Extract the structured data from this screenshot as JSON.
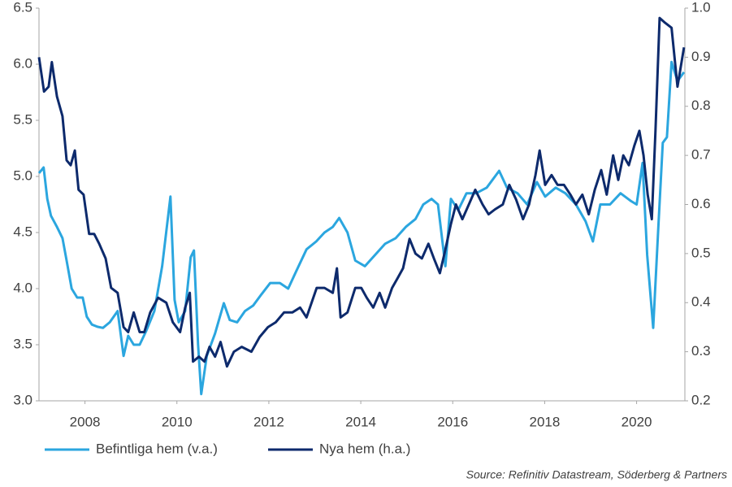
{
  "chart_data": {
    "type": "line",
    "source": "Source: Refinitiv Datastream, Söderberg & Partners",
    "xlim": [
      2007,
      2021.05
    ],
    "xticks": [
      2008,
      2010,
      2012,
      2014,
      2016,
      2018,
      2020
    ],
    "ylim": [
      3,
      6.5
    ],
    "yticks": [
      {
        "value": 3,
        "label": "3.0"
      },
      3.5,
      {
        "value": 4,
        "label": "4.0"
      },
      4.5,
      {
        "value": 5,
        "label": "5.0"
      },
      5.5,
      {
        "value": 6,
        "label": "6.0"
      },
      6.5
    ],
    "y2lim": [
      0.2,
      1
    ],
    "y2ticks": [
      0.2,
      0.3,
      0.4,
      0.5,
      0.6,
      0.7,
      0.8,
      0.9,
      {
        "value": 1,
        "label": "1.0"
      }
    ],
    "legend": "bottom",
    "series": [
      {
        "name": "Befintliga hem (v.a.)",
        "color": "#2ba6df",
        "axis": "y",
        "x": [
          2007.0,
          2007.1,
          2007.18,
          2007.26,
          2007.39,
          2007.51,
          2007.6,
          2007.71,
          2007.83,
          2007.95,
          2008.04,
          2008.15,
          2008.27,
          2008.39,
          2008.54,
          2008.71,
          2008.84,
          2008.94,
          2009.06,
          2009.19,
          2009.33,
          2009.51,
          2009.68,
          2009.86,
          2009.95,
          2010.04,
          2010.18,
          2010.3,
          2010.37,
          2010.46,
          2010.53,
          2010.65,
          2010.83,
          2011.02,
          2011.15,
          2011.31,
          2011.48,
          2011.66,
          2011.84,
          2012.03,
          2012.24,
          2012.42,
          2012.59,
          2012.82,
          2013.03,
          2013.21,
          2013.39,
          2013.53,
          2013.71,
          2013.88,
          2014.09,
          2014.31,
          2014.53,
          2014.76,
          2014.98,
          2015.19,
          2015.36,
          2015.54,
          2015.68,
          2015.84,
          2015.96,
          2016.12,
          2016.3,
          2016.51,
          2016.74,
          2017.01,
          2017.18,
          2017.41,
          2017.62,
          2017.83,
          2018.01,
          2018.24,
          2018.45,
          2018.68,
          2018.89,
          2019.05,
          2019.21,
          2019.42,
          2019.65,
          2019.88,
          2020.0,
          2020.13,
          2020.23,
          2020.36,
          2020.48,
          2020.57,
          2020.66,
          2020.76,
          2020.89,
          2021.03
        ],
        "values": [
          5.03,
          5.08,
          4.8,
          4.65,
          4.55,
          4.45,
          4.25,
          4.0,
          3.92,
          3.92,
          3.75,
          3.68,
          3.66,
          3.65,
          3.7,
          3.8,
          3.4,
          3.58,
          3.5,
          3.5,
          3.62,
          3.8,
          4.2,
          4.82,
          3.9,
          3.7,
          3.8,
          4.28,
          4.34,
          3.5,
          3.06,
          3.4,
          3.6,
          3.87,
          3.72,
          3.7,
          3.8,
          3.85,
          3.95,
          4.05,
          4.05,
          4.0,
          4.15,
          4.35,
          4.42,
          4.5,
          4.55,
          4.63,
          4.5,
          4.25,
          4.2,
          4.3,
          4.4,
          4.45,
          4.55,
          4.62,
          4.75,
          4.8,
          4.75,
          4.2,
          4.8,
          4.7,
          4.85,
          4.85,
          4.9,
          5.05,
          4.9,
          4.85,
          4.75,
          4.95,
          4.82,
          4.9,
          4.85,
          4.75,
          4.6,
          4.42,
          4.75,
          4.75,
          4.85,
          4.78,
          4.75,
          5.12,
          4.3,
          3.65,
          4.6,
          5.3,
          5.35,
          6.02,
          5.85,
          5.93
        ]
      },
      {
        "name": "Nya hem (h.a.)",
        "color": "#0d2a6c",
        "axis": "y2",
        "x": [
          2007.0,
          2007.11,
          2007.21,
          2007.28,
          2007.39,
          2007.51,
          2007.6,
          2007.69,
          2007.78,
          2007.86,
          2007.97,
          2008.09,
          2008.2,
          2008.31,
          2008.45,
          2008.57,
          2008.71,
          2008.84,
          2008.94,
          2009.06,
          2009.19,
          2009.29,
          2009.42,
          2009.59,
          2009.77,
          2009.91,
          2010.07,
          2010.18,
          2010.28,
          2010.35,
          2010.48,
          2010.6,
          2010.71,
          2010.83,
          2010.95,
          2011.09,
          2011.24,
          2011.41,
          2011.62,
          2011.8,
          2011.98,
          2012.15,
          2012.33,
          2012.51,
          2012.68,
          2012.82,
          2013.04,
          2013.21,
          2013.39,
          2013.48,
          2013.56,
          2013.71,
          2013.88,
          2014.01,
          2014.13,
          2014.27,
          2014.41,
          2014.53,
          2014.68,
          2014.8,
          2014.92,
          2015.06,
          2015.19,
          2015.33,
          2015.47,
          2015.59,
          2015.72,
          2015.82,
          2015.96,
          2016.07,
          2016.21,
          2016.35,
          2016.49,
          2016.65,
          2016.78,
          2016.92,
          2017.09,
          2017.23,
          2017.38,
          2017.53,
          2017.66,
          2017.8,
          2017.89,
          2018.01,
          2018.15,
          2018.28,
          2018.42,
          2018.56,
          2018.68,
          2018.82,
          2018.96,
          2019.09,
          2019.23,
          2019.35,
          2019.49,
          2019.6,
          2019.71,
          2019.83,
          2019.95,
          2020.06,
          2020.15,
          2020.24,
          2020.33,
          2020.41,
          2020.5,
          2020.62,
          2020.76,
          2020.89,
          2021.03
        ],
        "values": [
          0.9,
          0.83,
          0.84,
          0.89,
          0.82,
          0.78,
          0.69,
          0.68,
          0.71,
          0.63,
          0.62,
          0.54,
          0.54,
          0.52,
          0.49,
          0.43,
          0.42,
          0.35,
          0.34,
          0.38,
          0.34,
          0.34,
          0.38,
          0.41,
          0.4,
          0.36,
          0.34,
          0.39,
          0.42,
          0.28,
          0.29,
          0.28,
          0.31,
          0.29,
          0.32,
          0.27,
          0.3,
          0.31,
          0.3,
          0.33,
          0.35,
          0.36,
          0.38,
          0.38,
          0.39,
          0.37,
          0.43,
          0.43,
          0.42,
          0.47,
          0.37,
          0.38,
          0.43,
          0.43,
          0.41,
          0.39,
          0.42,
          0.39,
          0.43,
          0.45,
          0.47,
          0.53,
          0.5,
          0.49,
          0.52,
          0.49,
          0.46,
          0.5,
          0.56,
          0.6,
          0.57,
          0.6,
          0.63,
          0.6,
          0.58,
          0.59,
          0.6,
          0.64,
          0.61,
          0.57,
          0.6,
          0.66,
          0.71,
          0.64,
          0.66,
          0.64,
          0.64,
          0.62,
          0.6,
          0.62,
          0.58,
          0.63,
          0.67,
          0.62,
          0.7,
          0.65,
          0.7,
          0.68,
          0.72,
          0.75,
          0.7,
          0.62,
          0.57,
          0.75,
          0.98,
          0.97,
          0.96,
          0.84,
          0.92
        ]
      }
    ]
  }
}
